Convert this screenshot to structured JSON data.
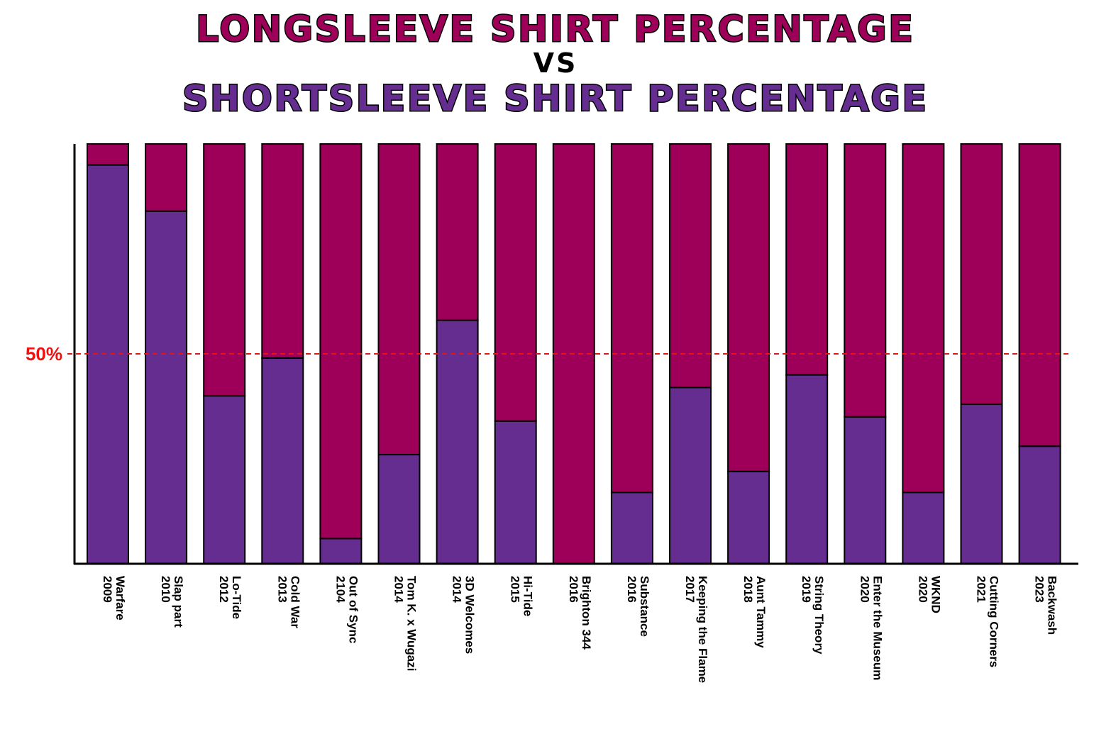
{
  "chart_data": {
    "type": "bar",
    "stacked": true,
    "title": "LONGSLEEVE SHIRT PERCENTAGE",
    "title_vs": "VS",
    "subtitle": "SHORTSLEEVE SHIRT PERCENTAGE",
    "reference_line": {
      "value": 50,
      "label": "50%",
      "style": "dashed"
    },
    "ylim": [
      0,
      100
    ],
    "grid": false,
    "categories": [
      [
        "Warfare",
        "2009"
      ],
      [
        "Slap part",
        "2010"
      ],
      [
        "Lo-Tide",
        "2012"
      ],
      [
        "Cold War",
        "2013"
      ],
      [
        "Out of Sync",
        "2104"
      ],
      [
        "Tom K. x Wugazi",
        "2014"
      ],
      [
        "3D Welcomes",
        "2014"
      ],
      [
        "Hi-Tide",
        "2015"
      ],
      [
        "Brighton 344",
        "2016"
      ],
      [
        "Substance",
        "2016"
      ],
      [
        "Keeping the Flame",
        "2017"
      ],
      [
        "Aunt Tammy",
        "2018"
      ],
      [
        "String Theory",
        "2019"
      ],
      [
        "Enter the Museum",
        "2020"
      ],
      [
        "WKND",
        "2020"
      ],
      [
        "Cutting Corners",
        "2021"
      ],
      [
        "Backwash",
        "2023"
      ]
    ],
    "series": [
      {
        "values": [
          95,
          84,
          40,
          49,
          6,
          26,
          58,
          34,
          0,
          17,
          42,
          22,
          45,
          35,
          17,
          38,
          28
        ]
      },
      {
        "values": [
          5,
          16,
          60,
          51,
          94,
          74,
          42,
          66,
          100,
          83,
          58,
          78,
          55,
          65,
          83,
          62,
          72
        ]
      }
    ],
    "colors": {
      "shortsleeve": "#662d91",
      "longsleeve": "#9e0059",
      "reference": "#ee1111",
      "title_longsleeve": "#9e0059",
      "title_vs": "#000000",
      "title_shortsleeve": "#662d91"
    }
  }
}
